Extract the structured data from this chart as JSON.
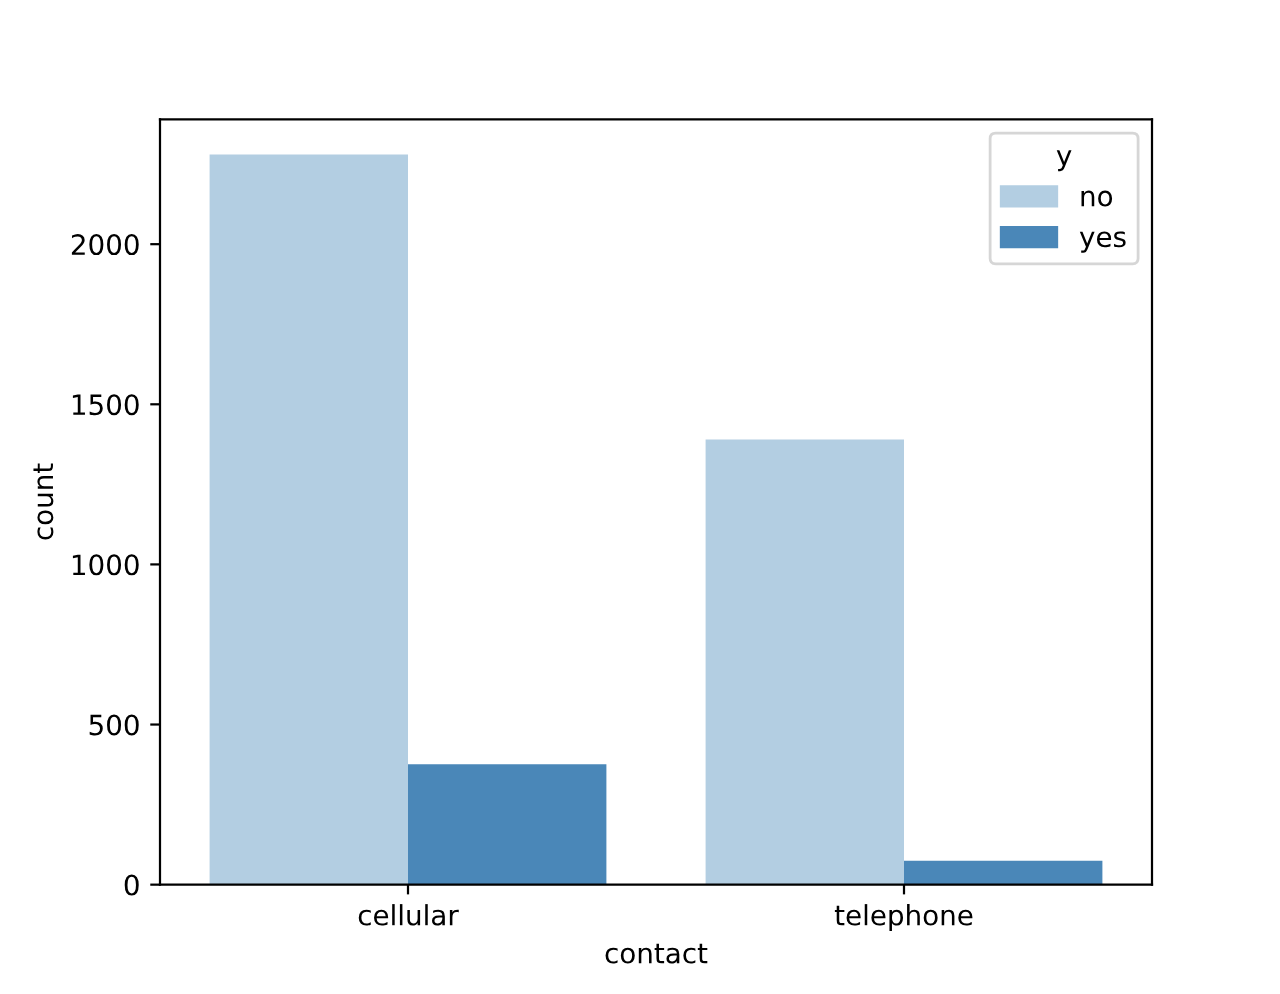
{
  "chart_data": {
    "type": "bar",
    "xlabel": "contact",
    "ylabel": "count",
    "legend_title": "y",
    "categories": [
      "cellular",
      "telephone"
    ],
    "series": [
      {
        "name": "no",
        "color": "#b3cee2",
        "values": [
          2280,
          1390
        ]
      },
      {
        "name": "yes",
        "color": "#4a87b8",
        "values": [
          376,
          75
        ]
      }
    ],
    "ylim": [
      0,
      2390
    ],
    "yticks": [
      0,
      500,
      1000,
      1500,
      2000
    ],
    "legend": "top right",
    "grid": false
  }
}
